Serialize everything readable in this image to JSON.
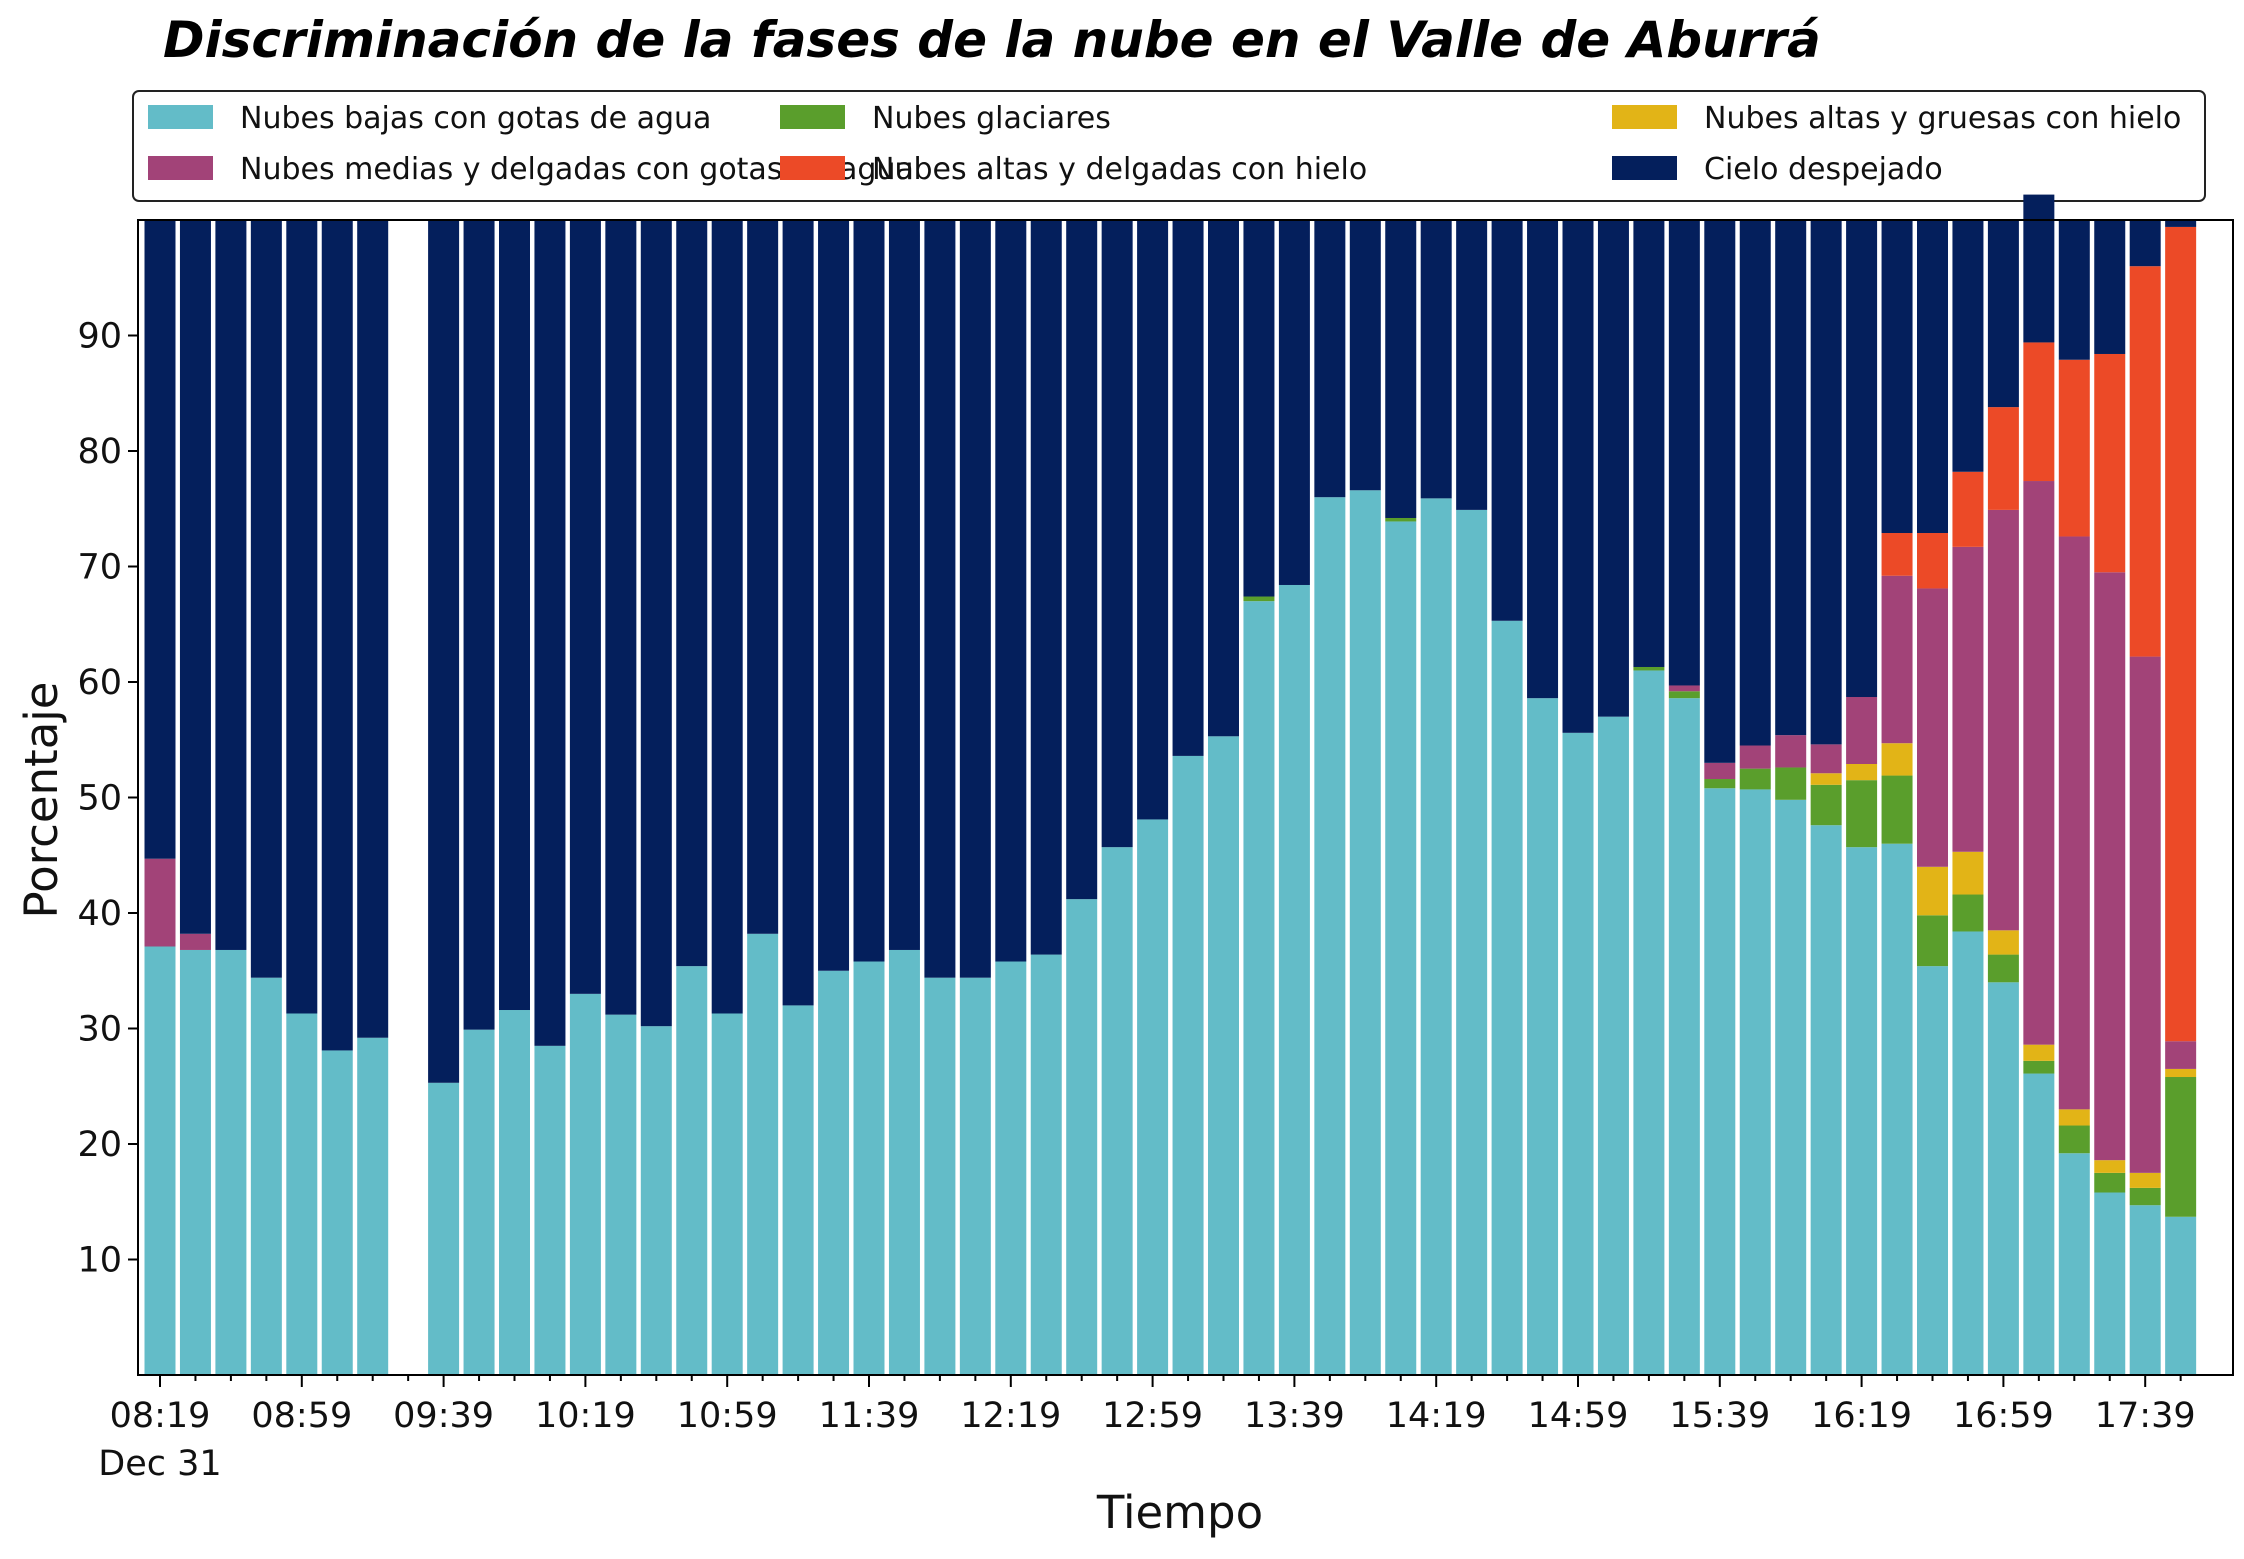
{
  "chart_data": {
    "type": "bar",
    "stacked": true,
    "title": "Discriminación de la fases de la nube en el Valle de Aburrá",
    "xlabel": "Tiempo",
    "ylabel": "Porcentaje",
    "ylim": [
      0,
      100
    ],
    "yticks": [
      10,
      20,
      30,
      40,
      50,
      60,
      70,
      80,
      90
    ],
    "xtick_labels": [
      "08:19",
      "08:59",
      "09:39",
      "10:19",
      "10:59",
      "11:39",
      "12:19",
      "12:59",
      "13:39",
      "14:19",
      "14:59",
      "15:39",
      "16:19",
      "16:59",
      "17:39"
    ],
    "xtick_sublabel": "Dec 31",
    "grid": false,
    "legend_position": "top",
    "categories": [
      "08:19",
      "08:29",
      "08:39",
      "08:49",
      "08:59",
      "09:09",
      "09:19",
      "09:29",
      "09:39",
      "09:49",
      "09:59",
      "10:09",
      "10:19",
      "10:29",
      "10:39",
      "10:49",
      "10:59",
      "11:09",
      "11:19",
      "11:29",
      "11:39",
      "11:49",
      "11:59",
      "12:09",
      "12:19",
      "12:29",
      "12:39",
      "12:49",
      "12:59",
      "13:09",
      "13:19",
      "13:29",
      "13:39",
      "13:49",
      "13:59",
      "14:09",
      "14:19",
      "14:29",
      "14:39",
      "14:49",
      "14:59",
      "15:09",
      "15:19",
      "15:29",
      "15:39",
      "15:49",
      "15:59",
      "16:09",
      "16:19",
      "16:29",
      "16:39",
      "16:49",
      "16:59",
      "17:09",
      "17:19",
      "17:29",
      "17:39",
      "17:49"
    ],
    "series": [
      {
        "name": "Nubes bajas con gotas de agua",
        "color": "#63bcc8",
        "values": [
          37.1,
          36.8,
          36.8,
          34.4,
          31.3,
          28.1,
          29.2,
          null,
          25.3,
          29.9,
          31.6,
          28.5,
          33.0,
          31.2,
          30.2,
          35.4,
          31.3,
          38.2,
          32.0,
          35.0,
          35.8,
          36.8,
          34.4,
          34.4,
          35.8,
          36.4,
          41.2,
          45.7,
          48.1,
          53.6,
          55.3,
          67.0,
          68.4,
          76.0,
          76.6,
          73.9,
          75.9,
          74.9,
          65.3,
          58.6,
          55.6,
          57.0,
          61.0,
          58.6,
          50.8,
          50.7,
          49.8,
          47.6,
          45.7,
          46.0,
          35.4,
          38.4,
          34.0,
          26.1,
          19.2,
          15.8,
          14.7,
          13.7
        ]
      },
      {
        "name": "Nubes glaciares",
        "color": "#5a9e2c",
        "values": [
          0,
          0,
          0,
          0,
          0,
          0,
          0,
          null,
          0,
          0,
          0,
          0,
          0,
          0,
          0,
          0,
          0,
          0,
          0,
          0,
          0,
          0,
          0,
          0,
          0,
          0,
          0,
          0,
          0,
          0,
          0,
          0.4,
          0,
          0,
          0,
          0.3,
          0,
          0,
          0,
          0,
          0,
          0,
          0.3,
          0.6,
          0.8,
          1.8,
          2.8,
          3.5,
          5.8,
          5.9,
          4.4,
          3.2,
          2.4,
          1.1,
          2.4,
          1.7,
          1.5,
          12.1
        ]
      },
      {
        "name": "Nubes altas y gruesas con hielo",
        "color": "#e2b417",
        "values": [
          0,
          0,
          0,
          0,
          0,
          0,
          0,
          null,
          0,
          0,
          0,
          0,
          0,
          0,
          0,
          0,
          0,
          0,
          0,
          0,
          0,
          0,
          0,
          0,
          0,
          0,
          0,
          0,
          0,
          0,
          0,
          0,
          0,
          0,
          0,
          0,
          0,
          0,
          0,
          0,
          0,
          0,
          0,
          0,
          0,
          0,
          0,
          1.0,
          1.4,
          2.8,
          4.2,
          3.7,
          2.1,
          1.4,
          1.4,
          1.1,
          1.3,
          0.7
        ]
      },
      {
        "name": "Nubes medias y delgadas con gotas de agua",
        "color": "#a24378",
        "values": [
          7.6,
          1.4,
          0,
          0,
          0,
          0,
          0,
          null,
          0,
          0,
          0,
          0,
          0,
          0,
          0,
          0,
          0,
          0,
          0,
          0,
          0,
          0,
          0,
          0,
          0,
          0,
          0,
          0,
          0,
          0,
          0,
          0,
          0,
          0,
          0,
          0,
          0,
          0,
          0,
          0,
          0,
          0,
          0,
          0.5,
          1.4,
          2.0,
          2.8,
          2.5,
          5.8,
          14.5,
          24.1,
          26.4,
          36.4,
          48.8,
          49.6,
          50.9,
          44.7,
          2.4
        ]
      },
      {
        "name": "Nubes altas y delgadas con hielo",
        "color": "#ec4a27",
        "values": [
          0,
          0,
          0,
          0,
          0,
          0,
          0,
          null,
          0,
          0,
          0,
          0,
          0,
          0,
          0,
          0,
          0,
          0,
          0,
          0,
          0,
          0,
          0,
          0,
          0,
          0,
          0,
          0,
          0,
          0,
          0,
          0,
          0,
          0,
          0,
          0,
          0,
          0,
          0,
          0,
          0,
          0,
          0,
          0,
          0,
          0,
          0,
          0,
          0,
          3.7,
          4.8,
          6.5,
          8.9,
          12.0,
          15.3,
          18.9,
          33.8,
          70.5
        ]
      },
      {
        "name": "Cielo despejado",
        "color": "#041f5c",
        "values": [
          55.3,
          61.8,
          63.2,
          65.6,
          68.7,
          71.9,
          70.8,
          null,
          74.7,
          70.1,
          68.4,
          71.5,
          67.0,
          68.8,
          69.8,
          64.6,
          68.7,
          61.8,
          68.0,
          65.0,
          64.2,
          63.2,
          65.6,
          65.6,
          64.2,
          63.6,
          58.8,
          54.3,
          51.9,
          46.4,
          44.7,
          32.6,
          31.6,
          24.0,
          23.4,
          25.8,
          24.1,
          25.1,
          34.7,
          41.4,
          44.4,
          43.0,
          38.7,
          40.3,
          47.0,
          45.5,
          44.6,
          45.4,
          41.3,
          27.1,
          27.1,
          21.8,
          16.2,
          12.8,
          12.1,
          11.6,
          4.0,
          0.6
        ]
      }
    ]
  }
}
